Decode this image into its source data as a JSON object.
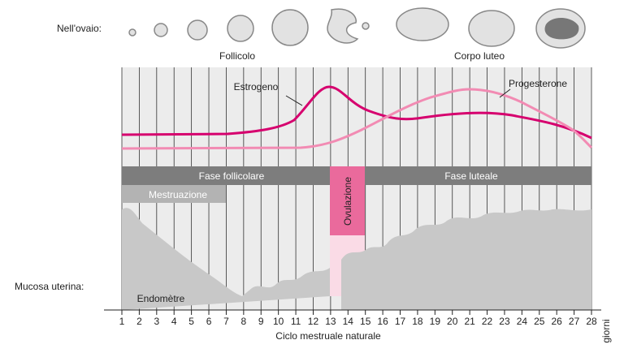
{
  "ovary": {
    "label": "Nell'ovaio:",
    "follicle": "Follicolo",
    "corpus_luteum": "Corpo luteo"
  },
  "hormones": {
    "estrogen": "Estrogeno",
    "progesterone": "Progesterone"
  },
  "phases": {
    "follicular": "Fase follicolare",
    "luteal": "Fase luteale",
    "menstruation": "Mestruazione",
    "ovulation": "Ovulazione"
  },
  "mucosa": {
    "label": "Mucosa uterina:",
    "endometrium": "Endomètre"
  },
  "axis": {
    "days": [
      "1",
      "2",
      "3",
      "4",
      "5",
      "6",
      "7",
      "8",
      "9",
      "10",
      "11",
      "12",
      "13",
      "14",
      "15",
      "16",
      "17",
      "18",
      "19",
      "20",
      "21",
      "22",
      "23",
      "24",
      "25",
      "26",
      "27",
      "28"
    ],
    "unit": "giorni",
    "title": "Ciclo mestruale naturale"
  }
}
